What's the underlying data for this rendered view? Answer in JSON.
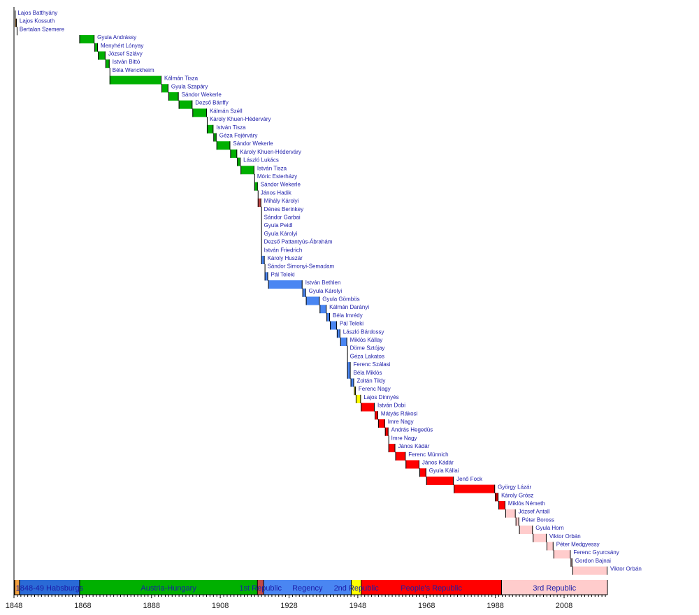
{
  "chart_data": {
    "type": "timeline",
    "title": "",
    "xlabel": "",
    "xlim": [
      1848,
      2020.6
    ],
    "x_ticks": [
      1848,
      1868,
      1888,
      1908,
      1928,
      1948,
      1968,
      1988,
      2008
    ],
    "colors": {
      "revolution": "#f0a040",
      "habsburgs": "#2a6ad6",
      "austria_hungary": "#00b000",
      "first_republic": "#c04848",
      "regency": "#4a86f2",
      "second_republic": "#ffff00",
      "peoples_republic": "#ff0000",
      "peoples_republic_late": "#c80000",
      "third_republic": "#ffcccc",
      "text": "#1c1ca8"
    },
    "eras": [
      {
        "label": "",
        "start": 1848.2,
        "end": 1849.6,
        "color": "revolution"
      },
      {
        "label": "1848-49 Habsburgs",
        "start": 1849.6,
        "end": 1867.1,
        "color": "habsburgs"
      },
      {
        "label": "Austria-Hungary",
        "start": 1867.1,
        "end": 1918.8,
        "color": "austria_hungary"
      },
      {
        "label": "1st Republic",
        "start": 1918.8,
        "end": 1920.6,
        "color": "first_republic"
      },
      {
        "label": "Regency",
        "start": 1920.6,
        "end": 1946.1,
        "color": "regency"
      },
      {
        "label": "2nd Republic",
        "start": 1946.1,
        "end": 1949.0,
        "color": "second_republic"
      },
      {
        "label": "People's Republic",
        "start": 1949.0,
        "end": 1989.8,
        "color": "peoples_republic"
      },
      {
        "label": "3rd Republic",
        "start": 1989.8,
        "end": 2020.6,
        "color": "third_republic"
      }
    ],
    "terms": [
      {
        "name": "Lajos Batthyány",
        "start": 1848.27,
        "end": 1848.27,
        "color": "revolution"
      },
      {
        "name": "Lajos Kossuth",
        "start": 1848.3,
        "end": 1848.8,
        "color": "revolution"
      },
      {
        "name": "Bertalan Szemere",
        "start": 1848.8,
        "end": 1848.8,
        "color": "revolution"
      },
      {
        "name": "Gyula Andrássy",
        "start": 1867.0,
        "end": 1871.4,
        "color": "austria_hungary"
      },
      {
        "name": "Menyhért Lónyay",
        "start": 1871.4,
        "end": 1872.4,
        "color": "austria_hungary"
      },
      {
        "name": "József Szlávy",
        "start": 1872.4,
        "end": 1874.6,
        "color": "austria_hungary"
      },
      {
        "name": "István Bittó",
        "start": 1874.6,
        "end": 1875.8,
        "color": "austria_hungary"
      },
      {
        "name": "Béla Wenckheim",
        "start": 1875.8,
        "end": 1875.8,
        "color": "austria_hungary"
      },
      {
        "name": "Kálmán Tisza",
        "start": 1875.8,
        "end": 1890.9,
        "color": "austria_hungary"
      },
      {
        "name": "Gyula Szapáry",
        "start": 1890.9,
        "end": 1892.9,
        "color": "austria_hungary"
      },
      {
        "name": "Sándor Wekerle",
        "start": 1892.9,
        "end": 1895.9,
        "color": "austria_hungary"
      },
      {
        "name": "Dezső Bánffy",
        "start": 1895.9,
        "end": 1899.9,
        "color": "austria_hungary"
      },
      {
        "name": "Kálmán Széll",
        "start": 1899.9,
        "end": 1904.1,
        "color": "austria_hungary"
      },
      {
        "name": "Károly Khuen-Héderváry",
        "start": 1904.1,
        "end": 1904.1,
        "color": "austria_hungary"
      },
      {
        "name": "István Tisza",
        "start": 1904.1,
        "end": 1906.0,
        "color": "austria_hungary"
      },
      {
        "name": "Géza Fejérváry",
        "start": 1906.0,
        "end": 1906.9,
        "color": "austria_hungary"
      },
      {
        "name": "Sándor Wekerle",
        "start": 1906.9,
        "end": 1910.9,
        "color": "austria_hungary"
      },
      {
        "name": "Károly Khuen-Héderváry",
        "start": 1910.9,
        "end": 1912.9,
        "color": "austria_hungary"
      },
      {
        "name": "László Lukács",
        "start": 1912.9,
        "end": 1913.9,
        "color": "austria_hungary"
      },
      {
        "name": "István Tisza",
        "start": 1913.9,
        "end": 1917.9,
        "color": "austria_hungary"
      },
      {
        "name": "Móric Esterházy",
        "start": 1917.9,
        "end": 1917.9,
        "color": "austria_hungary"
      },
      {
        "name": "Sándor Wekerle",
        "start": 1917.9,
        "end": 1918.9,
        "color": "austria_hungary"
      },
      {
        "name": "János Hadik",
        "start": 1918.9,
        "end": 1918.9,
        "color": "austria_hungary"
      },
      {
        "name": "Mihály Károlyi",
        "start": 1918.9,
        "end": 1919.9,
        "color": "first_republic"
      },
      {
        "name": "Dénes Berinkey",
        "start": 1919.9,
        "end": 1919.9,
        "color": "first_republic"
      },
      {
        "name": "Sándor Garbai",
        "start": 1919.9,
        "end": 1919.9,
        "color": "first_republic"
      },
      {
        "name": "Gyula Peidl",
        "start": 1919.9,
        "end": 1919.9,
        "color": "first_republic"
      },
      {
        "name": "Gyula Károlyi",
        "start": 1919.9,
        "end": 1919.9,
        "color": "first_republic"
      },
      {
        "name": "Dezső Pattantyús-Ábrahám",
        "start": 1919.9,
        "end": 1919.9,
        "color": "first_republic"
      },
      {
        "name": "István Friedrich",
        "start": 1919.9,
        "end": 1919.9,
        "color": "first_republic"
      },
      {
        "name": "Károly Huszár",
        "start": 1919.9,
        "end": 1920.9,
        "color": "regency"
      },
      {
        "name": "Sándor Simonyi-Semadam",
        "start": 1920.9,
        "end": 1920.9,
        "color": "regency"
      },
      {
        "name": "Pál Teleki",
        "start": 1920.9,
        "end": 1921.9,
        "color": "regency"
      },
      {
        "name": "István Bethlen",
        "start": 1921.9,
        "end": 1931.9,
        "color": "regency"
      },
      {
        "name": "Gyula Károlyi",
        "start": 1931.9,
        "end": 1932.9,
        "color": "regency"
      },
      {
        "name": "Gyula Gömbös",
        "start": 1932.9,
        "end": 1936.9,
        "color": "regency"
      },
      {
        "name": "Kálmán Darányi",
        "start": 1936.9,
        "end": 1938.9,
        "color": "regency"
      },
      {
        "name": "Béla Imrédy",
        "start": 1938.9,
        "end": 1939.9,
        "color": "regency"
      },
      {
        "name": "Pál Teleki",
        "start": 1939.9,
        "end": 1941.9,
        "color": "regency"
      },
      {
        "name": "László Bárdossy",
        "start": 1941.9,
        "end": 1942.9,
        "color": "regency"
      },
      {
        "name": "Miklós Kállay",
        "start": 1942.9,
        "end": 1944.9,
        "color": "regency"
      },
      {
        "name": "Döme Sztójay",
        "start": 1944.9,
        "end": 1944.9,
        "color": "regency"
      },
      {
        "name": "Géza Lakatos",
        "start": 1944.9,
        "end": 1944.9,
        "color": "regency"
      },
      {
        "name": "Ferenc Szálasi",
        "start": 1944.9,
        "end": 1945.9,
        "color": "regency"
      },
      {
        "name": "Béla Miklós",
        "start": 1944.9,
        "end": 1945.9,
        "color": "regency"
      },
      {
        "name": "Zoltán Tildy",
        "start": 1945.9,
        "end": 1946.9,
        "color": "regency"
      },
      {
        "name": "Ferenc Nagy",
        "start": 1946.9,
        "end": 1947.4,
        "color": "second_republic"
      },
      {
        "name": "Lajos Dinnyés",
        "start": 1947.4,
        "end": 1948.9,
        "color": "second_republic"
      },
      {
        "name": "István Dobi",
        "start": 1948.9,
        "end": 1952.9,
        "color": "peoples_republic"
      },
      {
        "name": "Mátyás Rákosi",
        "start": 1952.9,
        "end": 1953.9,
        "color": "peoples_republic"
      },
      {
        "name": "Imre Nagy",
        "start": 1953.9,
        "end": 1955.9,
        "color": "peoples_republic"
      },
      {
        "name": "András Hegedüs",
        "start": 1955.9,
        "end": 1956.9,
        "color": "peoples_republic"
      },
      {
        "name": "Imre Nagy",
        "start": 1956.9,
        "end": 1956.9,
        "color": "peoples_republic"
      },
      {
        "name": "János Kádár",
        "start": 1956.9,
        "end": 1958.9,
        "color": "peoples_republic"
      },
      {
        "name": "Ferenc Münnich",
        "start": 1958.9,
        "end": 1961.9,
        "color": "peoples_republic"
      },
      {
        "name": "János Kádár",
        "start": 1961.9,
        "end": 1965.9,
        "color": "peoples_republic"
      },
      {
        "name": "Gyula Kállai",
        "start": 1965.9,
        "end": 1967.9,
        "color": "peoples_republic"
      },
      {
        "name": "Jenő Fock",
        "start": 1967.9,
        "end": 1975.9,
        "color": "peoples_republic"
      },
      {
        "name": "György Lázár",
        "start": 1975.9,
        "end": 1987.9,
        "color": "peoples_republic"
      },
      {
        "name": "Károly Grósz",
        "start": 1987.9,
        "end": 1988.9,
        "color": "peoples_republic_late"
      },
      {
        "name": "Miklós Németh",
        "start": 1988.9,
        "end": 1990.9,
        "color": "peoples_republic"
      },
      {
        "name": "József Antall",
        "start": 1990.9,
        "end": 1993.9,
        "color": "third_republic"
      },
      {
        "name": "Péter Boross",
        "start": 1993.9,
        "end": 1994.9,
        "color": "third_republic"
      },
      {
        "name": "Gyula Horn",
        "start": 1994.9,
        "end": 1998.9,
        "color": "third_republic"
      },
      {
        "name": "Viktor Orbán",
        "start": 1998.9,
        "end": 2002.9,
        "color": "third_republic"
      },
      {
        "name": "Péter Medgyessy",
        "start": 2002.9,
        "end": 2004.9,
        "color": "third_republic"
      },
      {
        "name": "Ferenc Gyurcsány",
        "start": 2004.9,
        "end": 2009.9,
        "color": "third_republic"
      },
      {
        "name": "Gordon Bajnai",
        "start": 2009.9,
        "end": 2010.4,
        "color": "third_republic"
      },
      {
        "name": "Viktor Orbán",
        "start": 2010.4,
        "end": 2020.6,
        "color": "third_republic"
      }
    ]
  }
}
